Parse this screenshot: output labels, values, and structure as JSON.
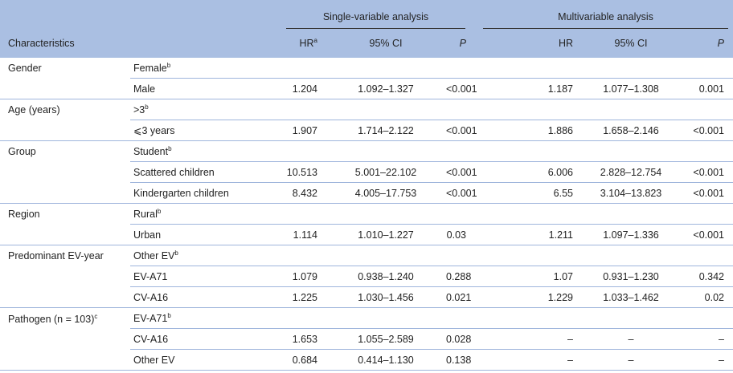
{
  "header": {
    "single": "Single-variable analysis",
    "multi": "Multivariable analysis",
    "columns": [
      {
        "text": "Characteristics"
      },
      {
        "text": "HR",
        "note": "a"
      },
      {
        "text": "95% CI"
      },
      {
        "text": "P"
      },
      {
        "text": "HR"
      },
      {
        "text": "95% CI"
      },
      {
        "text": "P"
      }
    ]
  },
  "groups": [
    {
      "name": "Gender",
      "rows": [
        {
          "level": "Female",
          "note": "b"
        },
        {
          "level": "Male",
          "values": [
            "1.204",
            "1.092–1.327",
            "<0.001",
            "1.187",
            "1.077–1.308",
            "0.001"
          ]
        }
      ]
    },
    {
      "name": "Age (years)",
      "rows": [
        {
          "level": ">3",
          "note": "b"
        },
        {
          "level": "⩽3 years",
          "values": [
            "1.907",
            "1.714–2.122",
            "<0.001",
            "1.886",
            "1.658–2.146",
            "<0.001"
          ]
        }
      ]
    },
    {
      "name": "Group",
      "rows": [
        {
          "level": "Student",
          "note": "b"
        },
        {
          "level": "Scattered children",
          "values": [
            "10.513",
            "5.001–22.102",
            "<0.001",
            "6.006",
            "2.828–12.754",
            "<0.001"
          ]
        },
        {
          "level": "Kindergarten children",
          "values": [
            "8.432",
            "4.005–17.753",
            "<0.001",
            "6.55",
            "3.104–13.823",
            "<0.001"
          ]
        }
      ]
    },
    {
      "name": "Region",
      "rows": [
        {
          "level": "Rural",
          "note": "b"
        },
        {
          "level": "Urban",
          "values": [
            "1.114",
            "1.010–1.227",
            "0.03",
            "1.211",
            "1.097–1.336",
            "<0.001"
          ]
        }
      ]
    },
    {
      "name": "Predominant EV-year",
      "rows": [
        {
          "level": "Other EV",
          "note": "b"
        },
        {
          "level": "EV-A71",
          "values": [
            "1.079",
            "0.938–1.240",
            "0.288",
            "1.07",
            "0.931–1.230",
            "0.342"
          ]
        },
        {
          "level": "CV-A16",
          "values": [
            "1.225",
            "1.030–1.456",
            "0.021",
            "1.229",
            "1.033–1.462",
            "0.02"
          ]
        }
      ]
    },
    {
      "name": "Pathogen (n = 103)",
      "note": "c",
      "rows": [
        {
          "level": "EV-A71",
          "note": "b"
        },
        {
          "level": "CV-A16",
          "values": [
            "1.653",
            "1.055–2.589",
            "0.028",
            "–",
            "–",
            "–"
          ]
        },
        {
          "level": "Other EV",
          "values": [
            "0.684",
            "0.414–1.130",
            "0.138",
            "–",
            "–",
            "–"
          ]
        }
      ]
    }
  ]
}
